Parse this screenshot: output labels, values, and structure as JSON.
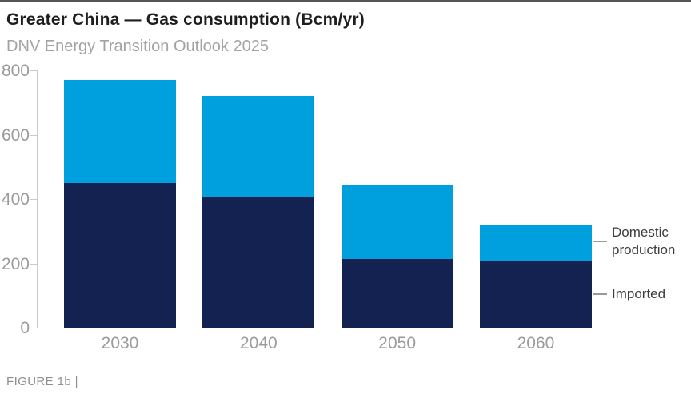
{
  "header": {
    "title": "Greater China — Gas consumption (Bcm/yr)",
    "subtitle": "DNV Energy Transition Outlook 2025"
  },
  "footer": {
    "caption": "FIGURE 1b |"
  },
  "legend": {
    "domestic_label": "Domestic production",
    "imported_label": "Imported"
  },
  "colors": {
    "domestic": "#009fdd",
    "imported": "#132250",
    "axis": "#c9c9c9",
    "leader_line": "#9a9a9a",
    "tick_label": "#9b9b9b",
    "title_text": "#1e1e1e",
    "subtitle_text": "#a3a3a3",
    "legend_text": "#3d3d3d",
    "caption_text": "#8f8f8f",
    "top_border": "#55565a"
  },
  "chart_data": {
    "type": "bar",
    "stacked": true,
    "title": "Greater China — Gas consumption (Bcm/yr)",
    "subtitle": "DNV Energy Transition Outlook 2025",
    "categories": [
      "2030",
      "2040",
      "2050",
      "2060"
    ],
    "series": [
      {
        "name": "Imported",
        "color": "#132250",
        "values": [
          450,
          405,
          215,
          210
        ]
      },
      {
        "name": "Domestic production",
        "color": "#009fdd",
        "values": [
          320,
          315,
          230,
          110
        ]
      }
    ],
    "totals": [
      770,
      720,
      445,
      320
    ],
    "xlabel": "",
    "ylabel": "",
    "ylim": [
      0,
      800
    ],
    "yticks": [
      0,
      200,
      400,
      600,
      800
    ],
    "ytick_labels": [
      "800",
      "600",
      "400",
      "200",
      "0"
    ],
    "grid": false,
    "legend_position": "right"
  }
}
